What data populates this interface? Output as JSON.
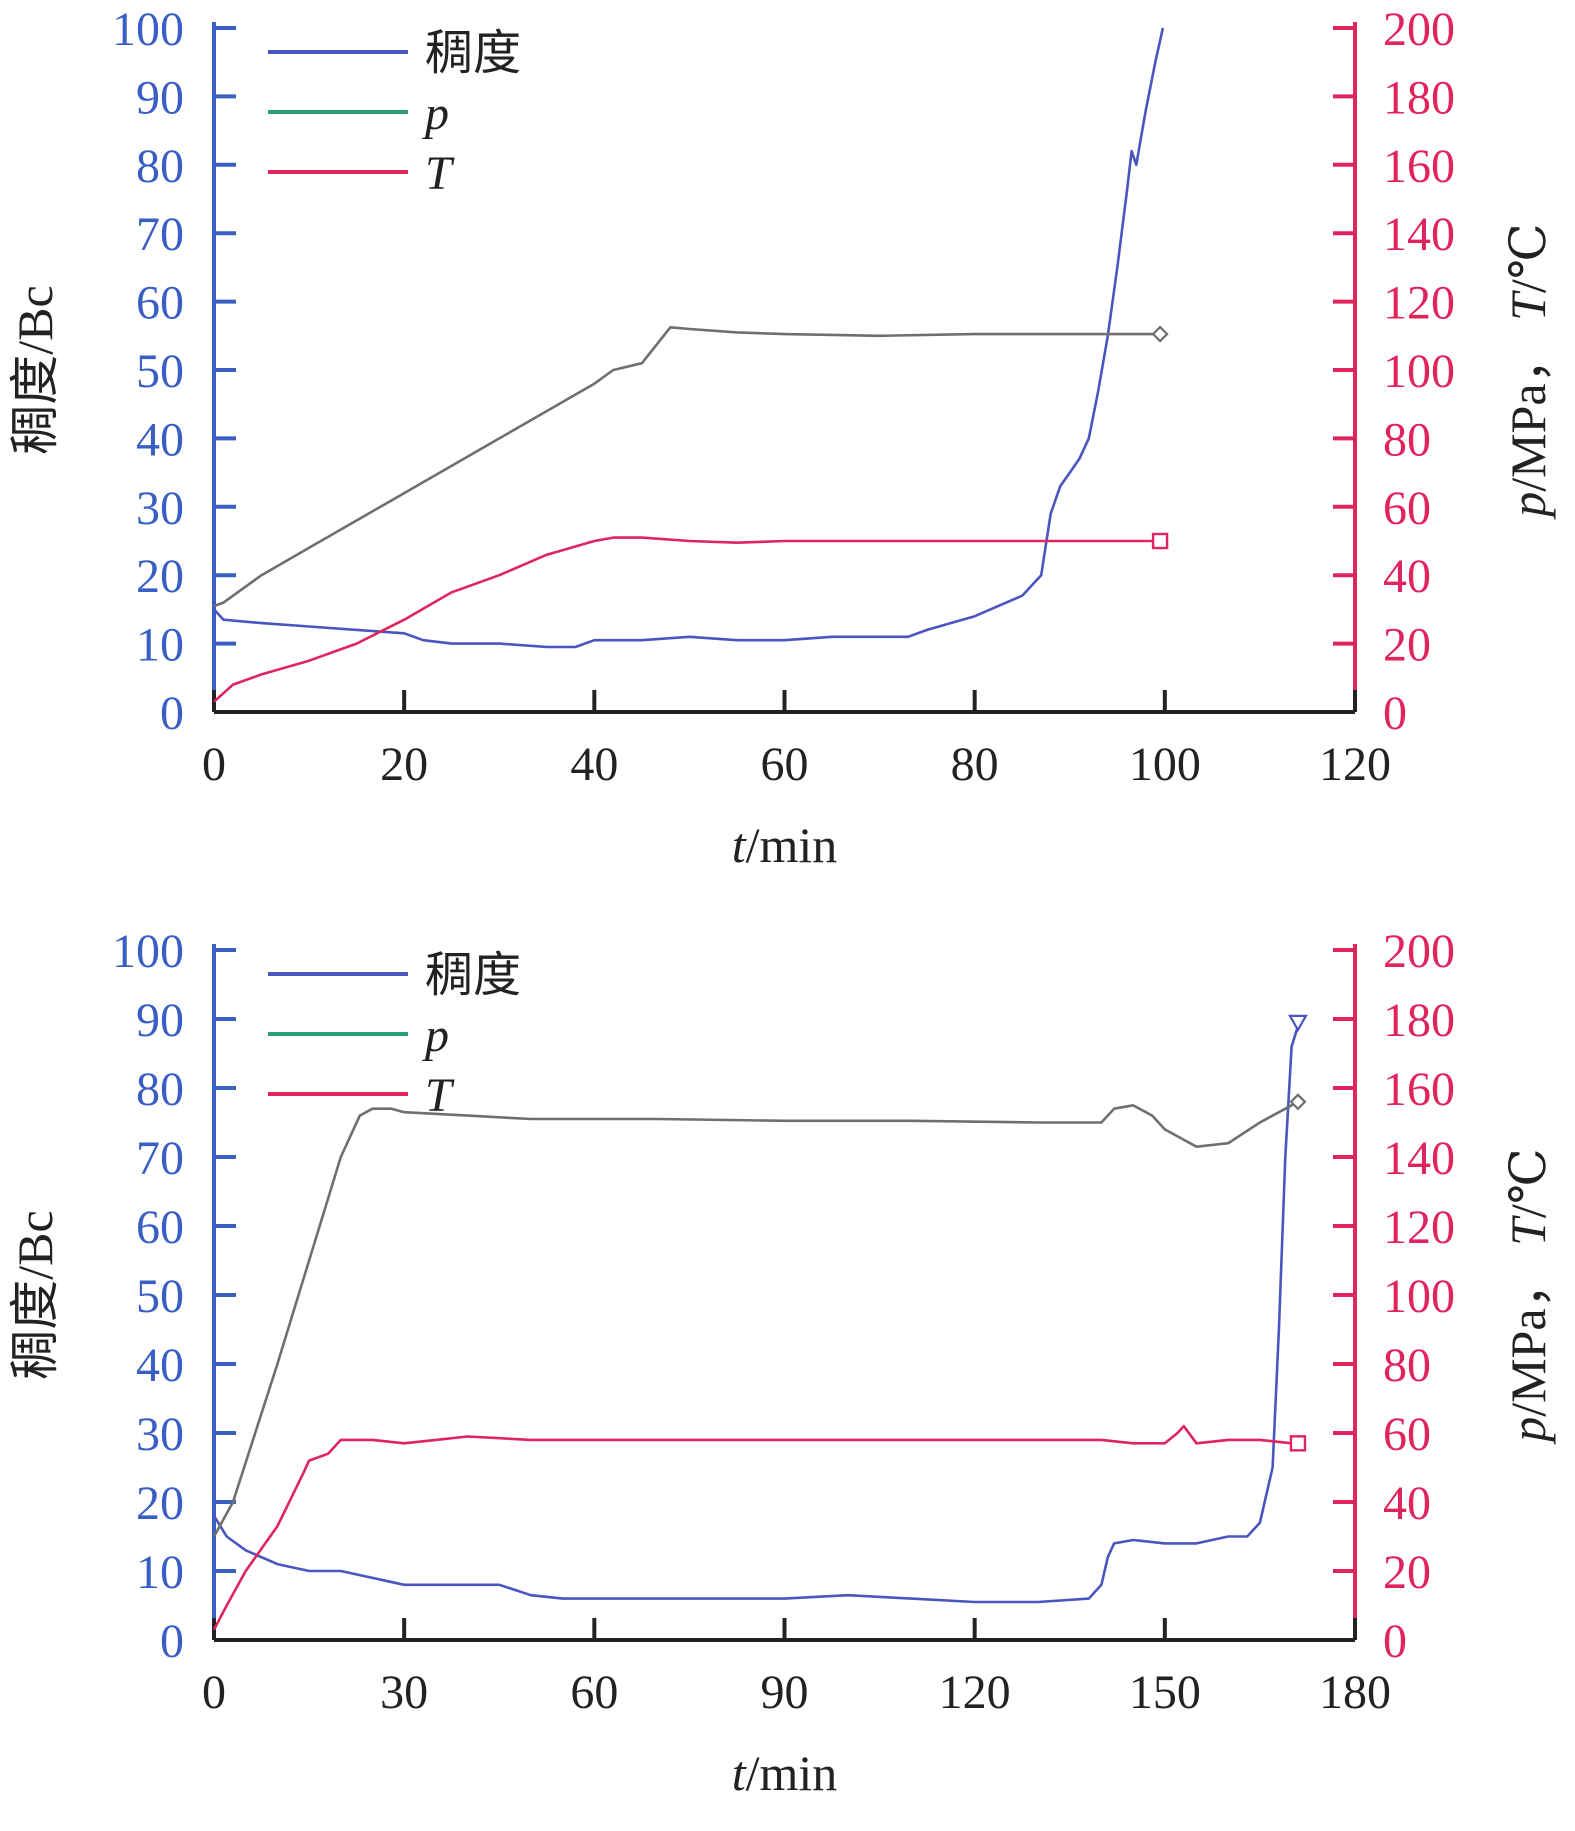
{
  "colors": {
    "consistency": "#4a55c0",
    "pressure": "#6f6f6f",
    "temperature": "#e0245e",
    "left_axis": "#3a5fc4",
    "right_axis": "#e0245e",
    "x_axis": "#222222",
    "legend_p": "#2aa07a"
  },
  "legend": {
    "consistency": "稠度",
    "pressure": "p",
    "temperature": "T"
  },
  "chart_data": [
    {
      "type": "line",
      "xlabel": "t/min",
      "ylabel_left": "稠度/Bc",
      "ylabel_right": "p/MPa， T/℃",
      "xlim": [
        0,
        120
      ],
      "ylim_left": [
        0,
        100
      ],
      "ylim_right": [
        0,
        200
      ],
      "x_ticks": [
        0,
        20,
        40,
        60,
        80,
        100,
        120
      ],
      "y_left_ticks": [
        0,
        10,
        20,
        30,
        40,
        50,
        60,
        70,
        80,
        90,
        100
      ],
      "y_right_ticks": [
        0,
        20,
        40,
        60,
        80,
        100,
        120,
        140,
        160,
        180,
        200
      ],
      "grid": false,
      "legend_position": "top-left",
      "series": [
        {
          "name": "稠度",
          "axis": "left",
          "x": [
            0,
            1,
            5,
            10,
            15,
            20,
            22,
            25,
            30,
            35,
            38,
            40,
            45,
            50,
            55,
            60,
            65,
            70,
            73,
            75,
            80,
            85,
            87,
            88,
            89,
            90,
            91,
            92,
            93,
            94,
            95,
            96,
            96.5,
            97,
            98,
            99,
            99.8
          ],
          "y": [
            15,
            13.5,
            13,
            12.5,
            12,
            11.5,
            10.5,
            10,
            10,
            9.5,
            9.5,
            10.5,
            10.5,
            11,
            10.5,
            10.5,
            11,
            11,
            11,
            12,
            14,
            17,
            20,
            29,
            33,
            35,
            37,
            40,
            47,
            55,
            65,
            76,
            82,
            80,
            88,
            95,
            100
          ]
        },
        {
          "name": "p",
          "axis": "right",
          "x": [
            0,
            1,
            5,
            10,
            20,
            30,
            40,
            42,
            45,
            48,
            50,
            55,
            60,
            70,
            80,
            90,
            99.5
          ],
          "y": [
            31,
            32,
            40,
            48,
            64,
            80,
            96,
            100,
            102,
            112.5,
            112,
            111,
            110.5,
            110,
            110.5,
            110.5,
            110.5
          ]
        },
        {
          "name": "T",
          "axis": "right",
          "x": [
            0,
            2,
            5,
            10,
            15,
            20,
            25,
            30,
            35,
            40,
            42,
            45,
            50,
            55,
            60,
            70,
            80,
            90,
            99.5
          ],
          "y": [
            3,
            8,
            11,
            15,
            20,
            27,
            35,
            40,
            46,
            50,
            51,
            51,
            50,
            49.5,
            50,
            50,
            50,
            50,
            50
          ]
        }
      ],
      "end_markers": [
        "diamond",
        "square"
      ]
    },
    {
      "type": "line",
      "xlabel": "t/min",
      "ylabel_left": "稠度/Bc",
      "ylabel_right": "p/MPa， T/℃",
      "xlim": [
        0,
        180
      ],
      "ylim_left": [
        0,
        100
      ],
      "ylim_right": [
        0,
        200
      ],
      "x_ticks": [
        0,
        30,
        60,
        90,
        120,
        150,
        180
      ],
      "y_left_ticks": [
        0,
        10,
        20,
        30,
        40,
        50,
        60,
        70,
        80,
        90,
        100
      ],
      "y_right_ticks": [
        0,
        20,
        40,
        60,
        80,
        100,
        120,
        140,
        160,
        180,
        200
      ],
      "grid": false,
      "legend_position": "top-left",
      "series": [
        {
          "name": "稠度",
          "axis": "left",
          "x": [
            0,
            2,
            5,
            10,
            15,
            20,
            25,
            30,
            35,
            40,
            45,
            50,
            55,
            60,
            70,
            80,
            90,
            100,
            110,
            120,
            130,
            138,
            140,
            141,
            142,
            145,
            150,
            155,
            160,
            163,
            165,
            167,
            168,
            169,
            170,
            171
          ],
          "y": [
            18,
            15,
            13,
            11,
            10,
            10,
            9,
            8,
            8,
            8,
            8,
            6.5,
            6,
            6,
            6,
            6,
            6,
            6.5,
            6,
            5.5,
            5.5,
            6,
            8,
            12,
            14,
            14.5,
            14,
            14,
            15,
            15,
            17,
            25,
            45,
            70,
            86,
            89
          ]
        },
        {
          "name": "p",
          "axis": "right",
          "x": [
            0,
            3,
            10,
            15,
            20,
            23,
            25,
            28,
            30,
            40,
            50,
            60,
            70,
            90,
            110,
            130,
            140,
            142,
            145,
            148,
            150,
            155,
            160,
            165,
            170,
            171
          ],
          "y": [
            30,
            40,
            80,
            110,
            140,
            152,
            154,
            154,
            153,
            152,
            151,
            151,
            151,
            150.5,
            150.5,
            150,
            150,
            154,
            155,
            152,
            148,
            143,
            144,
            150,
            155,
            156
          ]
        },
        {
          "name": "T",
          "axis": "right",
          "x": [
            0,
            2,
            5,
            10,
            14,
            15,
            18,
            20,
            25,
            30,
            35,
            40,
            50,
            60,
            70,
            90,
            110,
            130,
            140,
            145,
            150,
            152,
            153,
            155,
            160,
            165,
            170,
            171
          ],
          "y": [
            3,
            10,
            20,
            33,
            48,
            52,
            54,
            58,
            58,
            57,
            58,
            59,
            58,
            58,
            58,
            58,
            58,
            58,
            58,
            57,
            57,
            60,
            62,
            57,
            58,
            58,
            57,
            57
          ]
        }
      ],
      "end_markers": [
        "triangle-down",
        "diamond",
        "square"
      ]
    }
  ]
}
